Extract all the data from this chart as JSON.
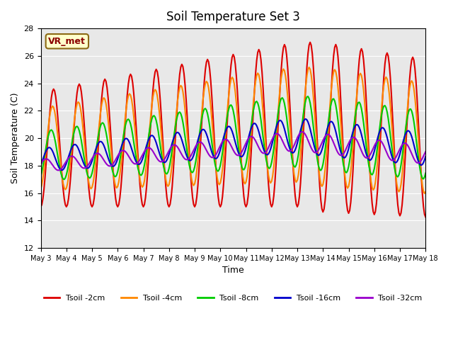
{
  "title": "Soil Temperature Set 3",
  "xlabel": "Time",
  "ylabel": "Soil Temperature (C)",
  "ylim": [
    12,
    28
  ],
  "yticks": [
    12,
    14,
    16,
    18,
    20,
    22,
    24,
    26,
    28
  ],
  "background_color": "#e8e8e8",
  "annotation_text": "VR_met",
  "lines": [
    {
      "label": "Tsoil -2cm",
      "color": "#dd0000",
      "lw": 1.5
    },
    {
      "label": "Tsoil -4cm",
      "color": "#ff8800",
      "lw": 1.5
    },
    {
      "label": "Tsoil -8cm",
      "color": "#00cc00",
      "lw": 1.5
    },
    {
      "label": "Tsoil -16cm",
      "color": "#0000cc",
      "lw": 1.5
    },
    {
      "label": "Tsoil -32cm",
      "color": "#9900cc",
      "lw": 1.5
    }
  ],
  "xtick_labels": [
    "May 3",
    "May 4",
    "May 5",
    "May 6",
    "May 7",
    "May 8",
    "May 9",
    "May 10",
    "May 11",
    "May 12",
    "May 13",
    "May 14",
    "May 15",
    "May 16",
    "May 17",
    "May 18"
  ],
  "n_days": 15
}
